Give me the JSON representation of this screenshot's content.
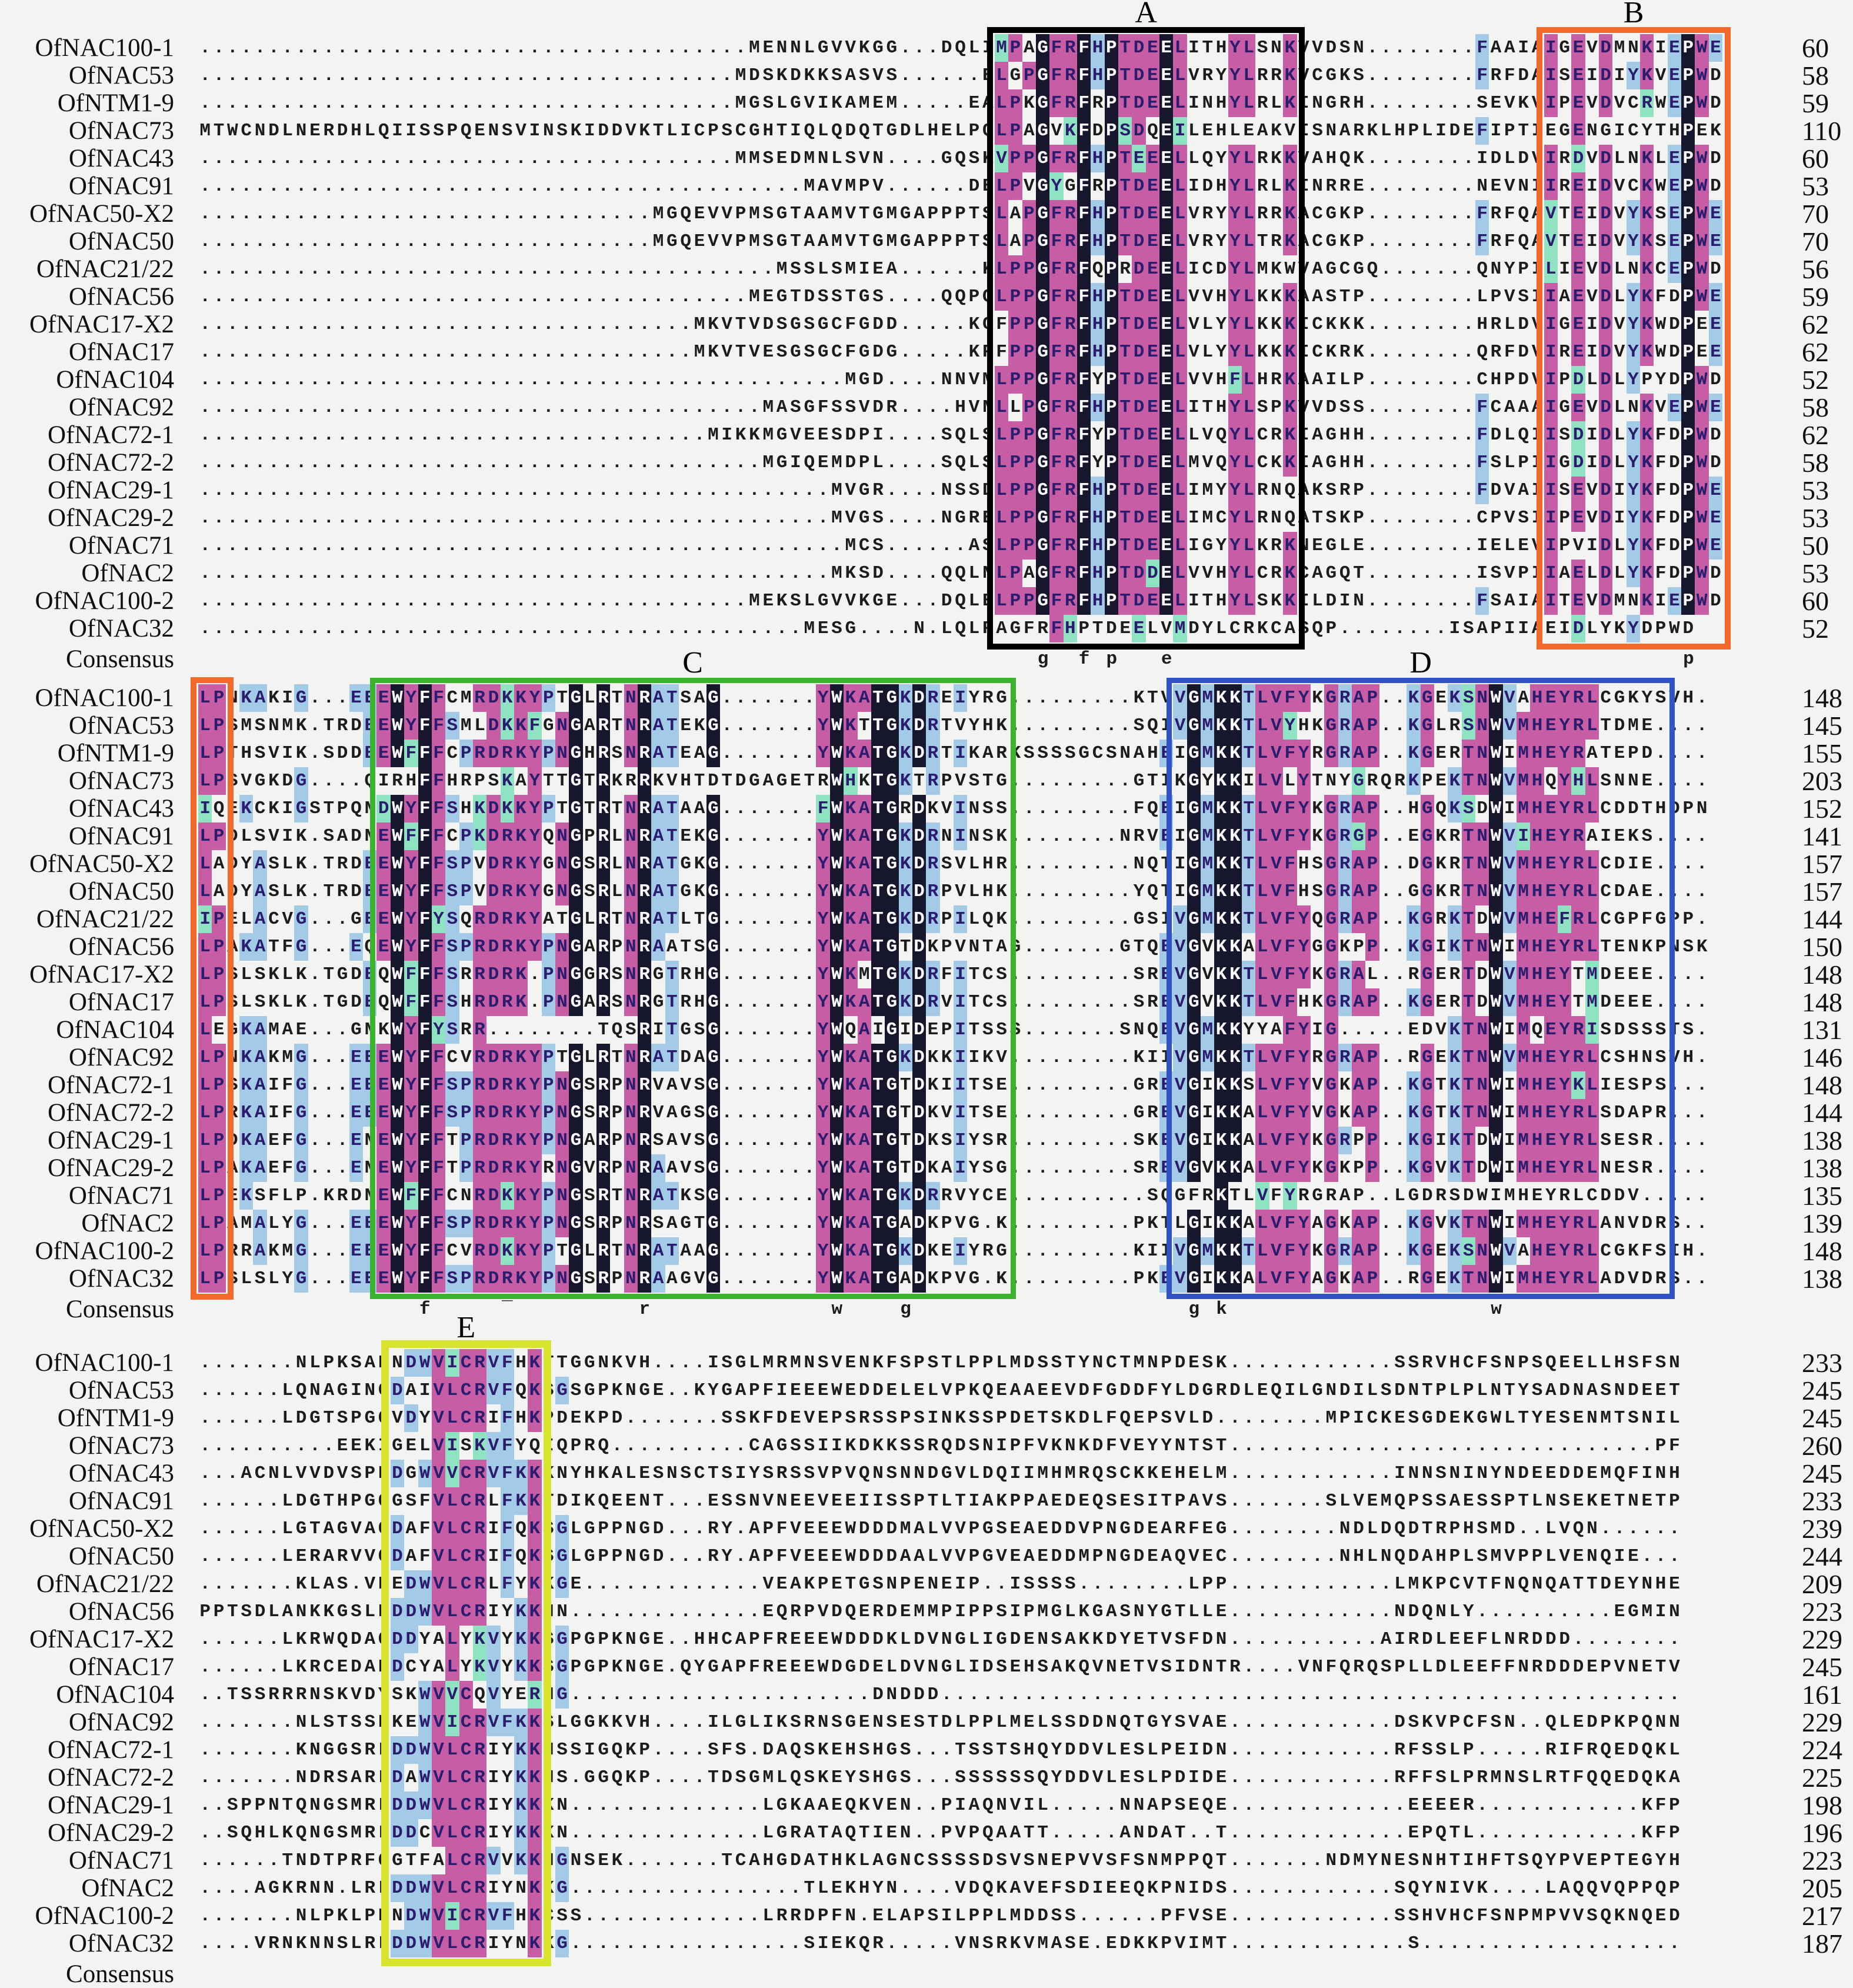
{
  "figure": {
    "type": "multiple-sequence-alignment",
    "organism_prefix": "Of",
    "consensus_label": "Consensus"
  },
  "colors": {
    "background": "#f3f3f1",
    "conserved_black": "#16162c",
    "conserved_black_text": "#fafaff",
    "strong_magenta": "#c75da4",
    "weak_blue": "#a3cbe8",
    "similar_mint": "#8fe2c2",
    "highlight_text": "#2b1d6e",
    "plain_text": "#1c1c1c",
    "box_a": "#000000",
    "box_b": "#f2692a",
    "box_c": "#3cb32e",
    "box_d": "#3053c6",
    "box_e": "#d6e42e"
  },
  "boxes": [
    {
      "label": "A",
      "block": 0,
      "col_start": 58,
      "col_end": 80,
      "color_key": "box_a",
      "border": 10
    },
    {
      "label": "B",
      "block": 0,
      "col_start": 98,
      "col_end": 111,
      "color_key": "box_b",
      "border": 10
    },
    {
      "label": "",
      "block": 1,
      "col_start": 0,
      "col_end": 2,
      "color_key": "box_b",
      "border": 10
    },
    {
      "label": "C",
      "block": 1,
      "col_start": 13,
      "col_end": 59,
      "color_key": "box_c",
      "border": 9
    },
    {
      "label": "D",
      "block": 1,
      "col_start": 71,
      "col_end": 107,
      "color_key": "box_d",
      "border": 9
    },
    {
      "label": "E",
      "block": 2,
      "col_start": 14,
      "col_end": 25,
      "color_key": "box_e",
      "border": 13
    }
  ],
  "blocks": [
    {
      "rows": [
        {
          "label": "OfNAC100-1",
          "seq": "{40}MENNLGVVKGG{3}DQLIMPAGFRFHPTDEELITHYLSNKVVDSN{8}FAAIAIGEVDMNKIEPWE",
          "end": 60
        },
        {
          "label": "OfNAC53",
          "seq": "{39}MDSKDKKSASVS{6}ELGPGFRFHPTDEELVRYYLRRKVCGKS{8}FRFDAISEIDIYKVEPWD",
          "end": 58
        },
        {
          "label": "OfNTM1-9",
          "seq": "{39}MGSLGVIKAMEM{5}EALPKGFRFRPTDEELINHYLRLKINGRH{8}SEVKVIPEVDVCRWEPWD",
          "end": 59
        },
        {
          "label": "OfNAC73",
          "seq": "MTWCNDLNERDHLQIISSPQENSVINSKIDDVKTLICPSCGHTIQLQDQTGDLHELPQLPAGVKFDPSDQEILEHLEAKVISNARKLHPLIDEFIPTIEGENGICYTHPEK",
          "end": 110
        },
        {
          "label": "OfNAC43",
          "seq": "{39}MMSEDMNLSVN{4}GQSKVPPGFRFHPTEEELLQYYLRKKVAHQK{8}IDLDVIRDVDLNKLEPWD",
          "end": 60
        },
        {
          "label": "OfNAC91",
          "seq": "{44}MAVMPV{6}DELPVGYGFRPTDEELIDHYLRLKINRRE{8}NEVNIIREIDVCKWEPWD",
          "end": 53
        },
        {
          "label": "OfNAC50-X2",
          "seq": "{33}MGQEVVPMSGTAAMVTGMGAPPPTSLAPGFRFHPTDEELVRYYLRRKACGKP{8}FRFQAVTEIDVYKSEPWE",
          "end": 70
        },
        {
          "label": "OfNAC50",
          "seq": "{33}MGQEVVPMSGTAAMVTGMGAPPPTSLAPGFRFHPTDEELVRYYLTRKACGKP{8}FRFQAVTEIDVYKSEPWE",
          "end": 70
        },
        {
          "label": "OfNAC21/22",
          "seq": "{42}MSSLSMIEA{6}KLPPGFRFQPRDEELICDYLMKWVAGCGQ{7}QNYPILIEVDLNKCEPWD",
          "end": 56
        },
        {
          "label": "OfNAC56",
          "seq": "{40}MEGTDSSTGS{4}QQPQLPPGFRFHPTDEELVVHYLKKKAASTP{8}LPVSIIAEVDLYKFDPWE",
          "end": 59
        },
        {
          "label": "OfNAC17-X2",
          "seq": "{36}MKVTVDSGSGCFGDD{5}KGFPPGFRFHPTDEELVLYYLKKKICKKK{8}HRLDVIGEIDVYKWDPEE",
          "end": 62
        },
        {
          "label": "OfNAC17",
          "seq": "{36}MKVTVESGSGCFGDG{5}KPFPPGFRFHPTDEELVLYYLKKKICKRK{8}QRFDVIREIDVYKWDPEE",
          "end": 62
        },
        {
          "label": "OfNAC104",
          "seq": "{47}MGD{4}NNVMLPPGFRFYPTDEELVVHFLHRKAAILP{8}CHPDVIPDLDLYPYDPWD",
          "end": 52
        },
        {
          "label": "OfNAC92",
          "seq": "{41}MASGFSSVDR{4}HVNLLPGFRFHPTDEELITHYLSPKVVDSS{8}FCAAAIGEVDLNKVEPWE",
          "end": 58
        },
        {
          "label": "OfNAC72-1",
          "seq": "{37}MIKKMGVEESDPI{4}SQLSLPPGFRFYPTDEELLVQYLCRKIAGHH{8}FDLQIISDIDLYKFDPWD",
          "end": 62
        },
        {
          "label": "OfNAC72-2",
          "seq": "{41}MGIQEMDPL{4}SQLSLPPGFRFYPTDEELMVQYLCKKIAGHH{8}FSLPIIGDIDLYKFDPWD",
          "end": 58
        },
        {
          "label": "OfNAC29-1",
          "seq": "{46}MVGR{4}NSSDLPPGFRFHPTDEELIMYYLRNQAKSRP{8}FDVAIISEVDIYKFDPWE",
          "end": 53
        },
        {
          "label": "OfNAC29-2",
          "seq": "{46}MVGS{4}NGRELPPGFRFHPTDEELIMCYLRNQATSKP{8}CPVSIIPEVDIYKFDPWE",
          "end": 53
        },
        {
          "label": "OfNAC71",
          "seq": "{47}MCS{6}ASLPPGFRFHPTDEELIGYYLKRKNEGLE{8}IELEVIPVIDLYKFDPWE",
          "end": 50
        },
        {
          "label": "OfNAC2",
          "seq": "{46}MKSD{4}QQLNLPAGFRFHPTDDELVVHYLCRKCAGQT{8}ISVPIIAELDLYKFDPWD",
          "end": 53
        },
        {
          "label": "OfNAC100-2",
          "seq": "{40}MEKSLGVVKGE{3}DQLELPPGFRFHPTDEELITHYLSKKILDIN{8}FSAIAITEVDMNKIEPWD",
          "end": 60
        },
        {
          "label": "OfNAC32",
          "seq": "{44}MESG{4}N.LQLPAGFRFHPTDEELVMDYLCRKCASQP{8}ISAPIIAEIDLYKYDPWD",
          "end": 52
        }
      ],
      "consensus": [
        {
          "ch": "g",
          "col": 61
        },
        {
          "ch": "f",
          "col": 64
        },
        {
          "ch": "p",
          "col": 66
        },
        {
          "ch": "e",
          "col": 70
        },
        {
          "ch": "p",
          "col": 108
        }
      ]
    },
    {
      "rows": [
        {
          "label": "OfNAC100-1",
          "seq": "LPNKAKIG{3}EEEWYFFCMRDKKYPTGLRTNRATSAG{7}YWKATGKDREIYRG{9}KTVVGMKKTLVFYKGRAP{2}KGEKSNWVAHEYRLCGKYSVH.",
          "end": 148
        },
        {
          "label": "OfNAC53",
          "seq": "LPSMSNMK.TRDEEWYFFSMLDKKFGNGARTNRATEKG{7}YWKTTGKDRTVYHK{9}SQIVGMKKTLVYHKGRAP{2}KGLRSNWVMHEYRLTDME{4}",
          "end": 145
        },
        {
          "label": "OfNTM1-9",
          "seq": "LPTHSVIK.SDDEEWFFFCPRDRKYPNGHRSNRATEAG{7}YWKATGKDRTIKARKSSSSGCSNAHEIGMKKTLVFYRGRAP{2}KGERTNWIMHEYRATEPD{4}",
          "end": 155
        },
        {
          "label": "OfNAC73",
          "seq": "LPSVGKDG{4}QIRHFFHRPSKAYTTGTRKRRKVHTDTDGAGETRWHKTGKTRPVSTG{9}GTIKGYKKILVLYTNYGRQRKPEKTNWVMHQYHLSNNE{4}",
          "end": 203
        },
        {
          "label": "OfNAC43",
          "seq": "IQEKCKIGSTPQNDWYFFSHKDKKYPTGTRTNRATAAG{7}FWKATGRDKVINSS{9}FQEIGMKKTLVFYKGRAP{2}HGQKSDWIMHEYRLCDDTHDPN",
          "end": 152
        },
        {
          "label": "OfNAC91",
          "seq": "LPDLSVIK.SADNEWFFFCPKDRKYQNGPRLNRATEKG{7}YWKATGKDRNINSK{8}NRVEIGMKKTLVFYKGRGP{2}EGKRTNWVIHEYRAIEKS{4}",
          "end": 141
        },
        {
          "label": "OfNAC50-X2",
          "seq": "LADYASLK.TRDEEWYFFSPVDRKYGNGSRLNRATGKG{7}YWKATGKDRSVLHR{9}NQTIGMKKTLVFHSGRAP{2}DGKRTNWVMHEYRLCDIE{4}",
          "end": 157
        },
        {
          "label": "OfNAC50",
          "seq": "LADYASLK.TRDEEWYFFSPVDRKYGNGSRLNRATGKG{7}YWKATGKDRPVLHK{9}YQTIGMKKTLVFHSGRAP{2}GGKRTNWVMHEYRLCDAE{4}",
          "end": 157
        },
        {
          "label": "OfNAC21/22",
          "seq": "IPELACVG{3}GEEWYFYSQRDRKYATGLRTNRATLTG{7}YWKATGKDRPILQK{9}GSIVGMKKTLVFYQGRAP{2}KGRKTDWVMHEFRLCGPFGPP.",
          "end": 144
        },
        {
          "label": "OfNAC56",
          "seq": "LPAKATFG{3}EQEWYFFSPRDRKYPNGARPNRAATSG{7}YWKATGTDKPVNTAG{7}GTQEVGVKKALVFYGGKPP{2}KGIKTNWIMHEYRLTENKPNSK",
          "end": 150
        },
        {
          "label": "OfNAC17-X2",
          "seq": "LPSLSKLK.TGDEQWFFFSRRDRK.PNGGRSNRGTRHG{7}YWKMTGKDRFITCS{9}SREVGVKKTLVFYKGRAL{2}RGERTDWVMHEYTMDEEE{4}",
          "end": 148
        },
        {
          "label": "OfNAC17",
          "seq": "LPSLSKLK.TGDEQWFFFSHRDRK.PNGARSNRGTRHG{7}YWKATGKDRVITCS{9}SREVGVKKTLVFHKGRAP{2}KGERTDWVMHEYTMDEEE{4}",
          "end": 148
        },
        {
          "label": "OfNAC104",
          "seq": "LEGKAMAE{3}GNKWYFYSRR{8}TQSRITGSG{7}YWQAIGIDEPITSSS{7}SNQEVGMKKYYAFYIG{5}EDVKTNWIMQEYRISDSSSTS.",
          "end": 131
        },
        {
          "label": "OfNAC92",
          "seq": "LPNKAKMG{3}EEEWYFFCVRDRKYPTGLRTNRATDAG{7}YWKATGKDKKIIKV{9}KIIVGMKKTLVFYRGRAP{2}RGEKTNWVMHEYRLCSHNSVH.",
          "end": 146
        },
        {
          "label": "OfNAC72-1",
          "seq": "LPSKAIFG{3}EEEWYFFSPRDRKYPNGSRPNRVAVSG{7}YWKATGTDKIITSE{9}GREVGIKKSLVFYVGKAP{2}KGTKTNWIMHEYKLIESPS{3}",
          "end": 148
        },
        {
          "label": "OfNAC72-2",
          "seq": "LPRKAIFG{3}EEEWYFFSPRDRKYPNGSRPNRVAGSG{7}YWKATGTDKVITSE{9}GREVGIKKALVFYVGKAP{2}KGTKTNWIMHEYRLSDAPR{3}",
          "end": 144
        },
        {
          "label": "OfNAC29-1",
          "seq": "LPDKAEFG{3}ENEWYFFTPRDRKYPNGARPNRSAVSG{7}YWKATGTDKSIYSR{9}SKEVGIKKALVFYKGRPP{2}KGIKTDWIMHEYRLSESR{4}",
          "end": 138
        },
        {
          "label": "OfNAC29-2",
          "seq": "LPAKAEFG{3}ENEWYFFTPRDRKYRNGVRPNRAAVSG{7}YWKATGTDKAIYSG{9}SREVGVKKALVFYKGKPP{2}KGVKTDWIMHEYRLNESR{4}",
          "end": 138
        },
        {
          "label": "OfNAC71",
          "seq": "LPEKSFLP.KRDNEWFFFCNRDKKYPNGSRTNRATKSG{7}YWKATGKDRRVYCE{10}SQGFRKTLVFYRGRAP{2}LGDRSDWIMHEYRLCDDV{5}",
          "end": 135
        },
        {
          "label": "OfNAC2",
          "seq": "LPAMALYG{3}EEEWYFFSPRDRKYPNGSRPNRSAGTG{7}YWKATGADKPVG.K{9}PKTLGIKKALVFYAGKAP{2}KGVKTNWIMHEYRLANVDRS{2}",
          "end": 139
        },
        {
          "label": "OfNAC100-2",
          "seq": "LPRRAKMG{3}EEEWYFFCVRDKKYPTGLRTNRATAAG{7}YWKATGKDKEIYRG{9}KIIVGMKKTLVFYKGRAP{2}KGEKSNWVAHEYRLCGKFSIH.",
          "end": 148
        },
        {
          "label": "OfNAC32",
          "seq": "LPSLSLYG{3}EEEWYFFSPRDRKYPNGSRPNRAAGVG{7}YWKATGADKPVG.K{9}PKEVGIKKALVFYAGKAP{2}RGEKTNWIMHEYRLADVDRS{2}",
          "end": 138
        }
      ],
      "consensus": [
        {
          "ch": "f",
          "col": 16
        },
        {
          "ch": "¯",
          "col": 22
        },
        {
          "ch": "r",
          "col": 32
        },
        {
          "ch": "w",
          "col": 46
        },
        {
          "ch": "g",
          "col": 51
        },
        {
          "ch": "g",
          "col": 72
        },
        {
          "ch": "k",
          "col": 74
        },
        {
          "ch": "w",
          "col": 94
        }
      ]
    },
    {
      "rows": [
        {
          "label": "OfNAC100-1",
          "seq": "{7}NLPKSAENDWVICRVFHKTTGGNKVH{4}ISGLMRMNSVENKFSPSTLPPLMDSSTYNCTMNPDESK{12}SSRVHCFSNPSQEELLHSFSN",
          "end": 233
        },
        {
          "label": "OfNAC53",
          "seq": "{6}LQNAGINGDAIVLCRVFQKSGSGPKNGE{2}KYGAPFIEEEWEDDELELVPKQEAAEEVDFGDDFYLDGRDLEQILGNDILSDNTPLPLNTYSADNASNDEET",
          "end": 245
        },
        {
          "label": "OfNTM1-9",
          "seq": "{6}LDGTSPGQVDYVLCRIFHKPDEKPD{7}SSKFDEVEPSRSSPSINKSSPDETSKDLFQEPSVLD{8}MPICKESGDEKGWLTYESENMTSNIL",
          "end": 245
        },
        {
          "label": "OfNAC73",
          "seq": "{10}EEKIGELVISKVFYQIQPRQ{10}CAGSSIIKDKKSSRQDSNIPFVKNKDFVEYYNTST{31}PF",
          "end": 260
        },
        {
          "label": "OfNAC43",
          "seq": "{3}ACNLVVDVSPEDGWVVCRVFKKKNYHKALESNSCTSIYSRSSVPVQNSNNDGVLDQIIMHMRQSCKKEHELM{12}INNSNINYNDEEDDEMQFINH",
          "end": 245
        },
        {
          "label": "OfNAC91",
          "seq": "{6}LDGTHPGQGSFVLCRLFKKTDIKQEENT{3}ESSNVNEEVEEIISSPTLTIAKPPAEDEQSESITPAVS{7}SLVEMQPSSAESSPTLNSEKETNETP",
          "end": 233
        },
        {
          "label": "OfNAC50-X2",
          "seq": "{6}LGTAGVAQDAFVLCRIFQKSGLGPPNGD{3}RY.APFVEEEWDDDMALVVPGSEAEDDVPNGDEARFEG{8}NDLDQDTRPHSMD{2}LVQN{6}",
          "end": 239
        },
        {
          "label": "OfNAC50",
          "seq": "{6}LERARVVQDAFVLCRIFQKSGLGPPNGD{3}RY.APFVEEEWDDDAALVVPGVEAEDDMPNGDEAQVEC{8}NHLNQDAHPLSMVPPLVENQIE{3}",
          "end": 244
        },
        {
          "label": "OfNAC21/22",
          "seq": "{7}KLAS.VEEDWVLCRLFYKKGE{13}VEAKPETGSNPENEIP{2}ISSSS{8}LPP{12}LMKPCVTFNQNQATTDEYNHE",
          "end": 209
        },
        {
          "label": "OfNAC56",
          "seq": "PPTSDLANKKGSLRDDWVLCRIYKKNN{14}EQRPVDQERDEMMPIPPSIPMGLKGASNYGTLLE{12}NDQNLY{10}EGMIN",
          "end": 223
        },
        {
          "label": "OfNAC17-X2",
          "seq": "{6}LKRWQDAQDDYALYKVYKKSGPGPKNGE{2}HHCAPFREEEWDDDKLDVNGLIGDENSAKKDYETVSFDN{11}AIRDLEEFLNRDDD{8}",
          "end": 229
        },
        {
          "label": "OfNAC17",
          "seq": "{6}LKRCEDANDCYALYKVYKKSGPGPKNGE.QYGAPFREEEWDGDELDVNGLIDSEHSAKQVNETVSIDNTR{4}VNFQRQSPLLDLEEFFNRDDDEPVNETV",
          "end": 245
        },
        {
          "label": "OfNAC104",
          "seq": "{2}TSSRRRNSKVDYSKWVVCQVYERNG{22}DNDDD{54}",
          "end": 161
        },
        {
          "label": "OfNAC92",
          "seq": "{7}NLSTSSEKEWVICRVFKKSLGGKKVH{4}ILGLIKSRNSGENSESTDLPPLMELSSDDNQTGYSVAE{12}DSKVPCFSN{2}QLEDPKPQNN",
          "end": 229
        },
        {
          "label": "OfNAC72-1",
          "seq": "{7}KNGGSRLDDWVLCRIYKKNSSIGQKP{4}SFS.DAQSKEHSHGS{3}TSSTSHQYDDVLESLPEIDN{12}RFSSLP{5}RIFRQEDQKL",
          "end": 224
        },
        {
          "label": "OfNAC72-2",
          "seq": "{7}NDRSARLDAWVLCRIYKKNS.GGQKP{4}TDSGMLQSKEYSHGS{3}SSSSSSQYDDVLESLPDIDE{12}RFFSLPRMNSLRTFQQEDQKA",
          "end": 225
        },
        {
          "label": "OfNAC29-1",
          "seq": "{2}SPPNTQNGSMRLDDWVLCRIYKKKN{14}LGKAAEQKVEN{2}PIAQNVIL{5}NNAPSEQE{13}EEEER{12}KFP",
          "end": 198
        },
        {
          "label": "OfNAC29-2",
          "seq": "{2}SQHLKQNGSMRLDDCVLCRIYKKKN{14}LGRATAQTIEN{2}PVPQAATT{5}ANDAT{2}T{13}EPQTL{12}KFP",
          "end": 196
        },
        {
          "label": "OfNAC71",
          "seq": "{6}TNDTPRFQGTFALCRVVKKNGNSEK{7}TCAHGDATHKLAGNCSSSSDSVSNEPVVSFSNMPPQT{7}NDMYNESNHTIHFTSQYPVEPTEGYH",
          "end": 223
        },
        {
          "label": "OfNAC2",
          "seq": "{4}AGKRNN.LRLDDWVLCRIYNKKG{17}TLEKHYN{4}VDQKAVEFSDIEEQKPNIDS{12}SQYNIVK{4}LAQQVQPPQP",
          "end": 205
        },
        {
          "label": "OfNAC100-2",
          "seq": "{7}NLPKLPENDWVICRVFHKCSS{13}LRRDPFN.ELAPSILPPLMDDSS{6}PFVSE{12}SSHVHCFSNPMPVVSQKNQED",
          "end": 217
        },
        {
          "label": "OfNAC32",
          "seq": "{4}VRNKNNSLRLDDWVLCRIYNKKG{17}SIEKQR{5}VNSRKVMASE.EDKKPVIMT{13}S{19}",
          "end": 187
        }
      ],
      "consensus": []
    }
  ]
}
